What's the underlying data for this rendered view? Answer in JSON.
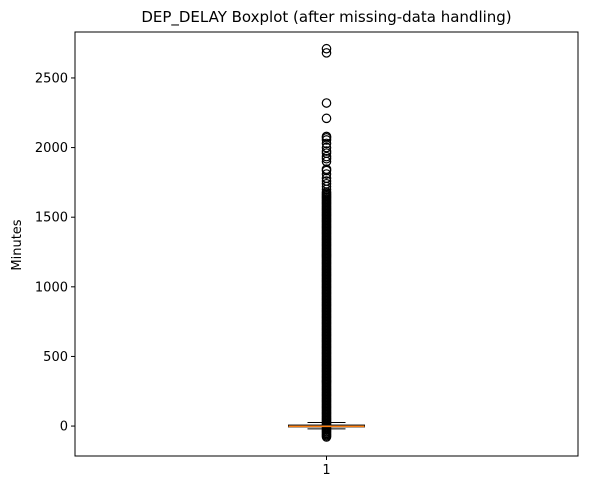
{
  "chart_data": {
    "type": "boxplot",
    "title": "DEP_DELAY Boxplot (after missing-data handling)",
    "xlabel": "",
    "ylabel": "Minutes",
    "categories": [
      "1"
    ],
    "yticks": [
      0,
      500,
      1000,
      1500,
      2000,
      2500
    ],
    "ylim": [
      -215,
      2830
    ],
    "grid": false,
    "series": [
      {
        "category": "1",
        "whisker_low": -20,
        "q1": -6,
        "median": -2,
        "q3": 7,
        "whisker_high": 26,
        "outliers_dense_range": [
          -80,
          1680
        ],
        "outliers": [
          1700,
          1720,
          1740,
          1760,
          1780,
          1810,
          1835,
          1845,
          1900,
          1920,
          1935,
          1960,
          1975,
          2000,
          2030,
          2055,
          2070,
          2080,
          2210,
          2320,
          2680,
          2710
        ]
      }
    ],
    "colors": {
      "median": "#ff7f0e",
      "box": "#000000",
      "outlier": "#000000"
    }
  }
}
